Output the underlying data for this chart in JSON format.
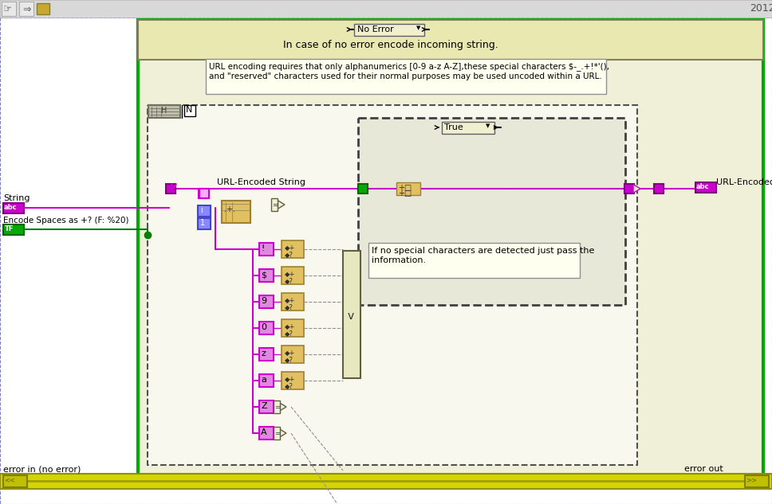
{
  "bg_color": "#ffffff",
  "toolbar_bg": "#d8d8d8",
  "dashed_border_color": "#6060ff",
  "outer_green_box_bg": "#f0f0d8",
  "outer_green_box_edge": "#00aa00",
  "case_header_bg": "#e8e8b0",
  "case_header_edge": "#808060",
  "inner_case_bg": "#f5f5e0",
  "inner_case_edge": "#505050",
  "forloop_bg": "#f0f0e0",
  "true_case_bg": "#e8e8d8",
  "true_case_edge": "#404040",
  "comment_bg": "#fffff0",
  "comment_edge": "#909090",
  "pass_comment_bg": "#fffff0",
  "wire_color": "#cc00cc",
  "wire_color2": "#aa00aa",
  "green_wire": "#008000",
  "gold_wire": "#a09000",
  "error_bar_bg": "#c8c800",
  "error_bar_edge": "#808000",
  "string_node_color": "#cc00cc",
  "string_node_edge": "#800080",
  "bool_node_color": "#00aa00",
  "bool_node_edge": "#006600",
  "index_node_color": "#5555ff",
  "index_node_edge": "#0000aa",
  "gold_node_color": "#e0c060",
  "gold_node_edge": "#a08030",
  "gray_node_color": "#c0c0c0",
  "gray_node_edge": "#606060",
  "select_bg": "#e8e8b8",
  "select_edge": "#606040",
  "no_error_text": "No Error",
  "case_label_text": "In case of no error encode incoming string.",
  "url_comment": "URL encoding requires that only alphanumerics [0-9 a-z A-Z],these special characters $-_.+!*'(),\nand \"reserved\" characters used for their normal purposes may be used uncoded within a URL.",
  "url_encoded_label": "URL-Encoded String",
  "url_encoded_label_out": "URL-Encoded String",
  "string_label": "String",
  "encode_label": "Encode Spaces as +? (F: %20)",
  "error_in_label": "error in (no error)",
  "error_out_label": "error out",
  "true_label": "True",
  "pass_comment": "If no special characters are detected just pass the\ninformation.",
  "char_labels": [
    "!",
    "$",
    "9",
    "0",
    "z",
    "a",
    "Z",
    "A"
  ],
  "title_year": "2012",
  "figsize": [
    9.68,
    6.33
  ],
  "dpi": 100
}
